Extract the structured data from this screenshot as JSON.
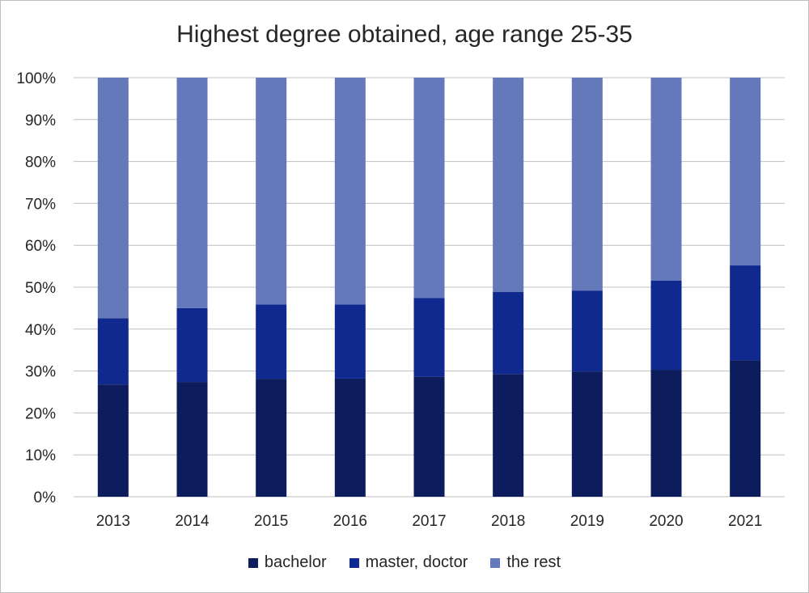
{
  "chart_data": {
    "type": "bar",
    "stacked": true,
    "title": "Highest degree obtained, age range 25-35",
    "xlabel": "",
    "ylabel": "",
    "ylim": [
      0,
      100
    ],
    "yticks": [
      "0%",
      "10%",
      "20%",
      "30%",
      "40%",
      "50%",
      "60%",
      "70%",
      "80%",
      "90%",
      "100%"
    ],
    "categories": [
      "2013",
      "2014",
      "2015",
      "2016",
      "2017",
      "2018",
      "2019",
      "2020",
      "2021"
    ],
    "series": [
      {
        "name": "bachelor",
        "color": "#0c1c5c",
        "values": [
          26.8,
          27.4,
          28.1,
          28.2,
          28.6,
          29.3,
          29.9,
          30.3,
          32.6
        ]
      },
      {
        "name": "master, doctor",
        "color": "#10298f",
        "values": [
          15.8,
          17.6,
          17.8,
          17.7,
          18.8,
          19.6,
          19.3,
          21.3,
          22.6
        ]
      },
      {
        "name": "the rest",
        "color": "#6478ba",
        "values": [
          57.4,
          55.0,
          54.1,
          54.1,
          52.6,
          51.1,
          50.8,
          48.4,
          44.8
        ]
      }
    ],
    "grid": true,
    "legend_position": "bottom"
  }
}
